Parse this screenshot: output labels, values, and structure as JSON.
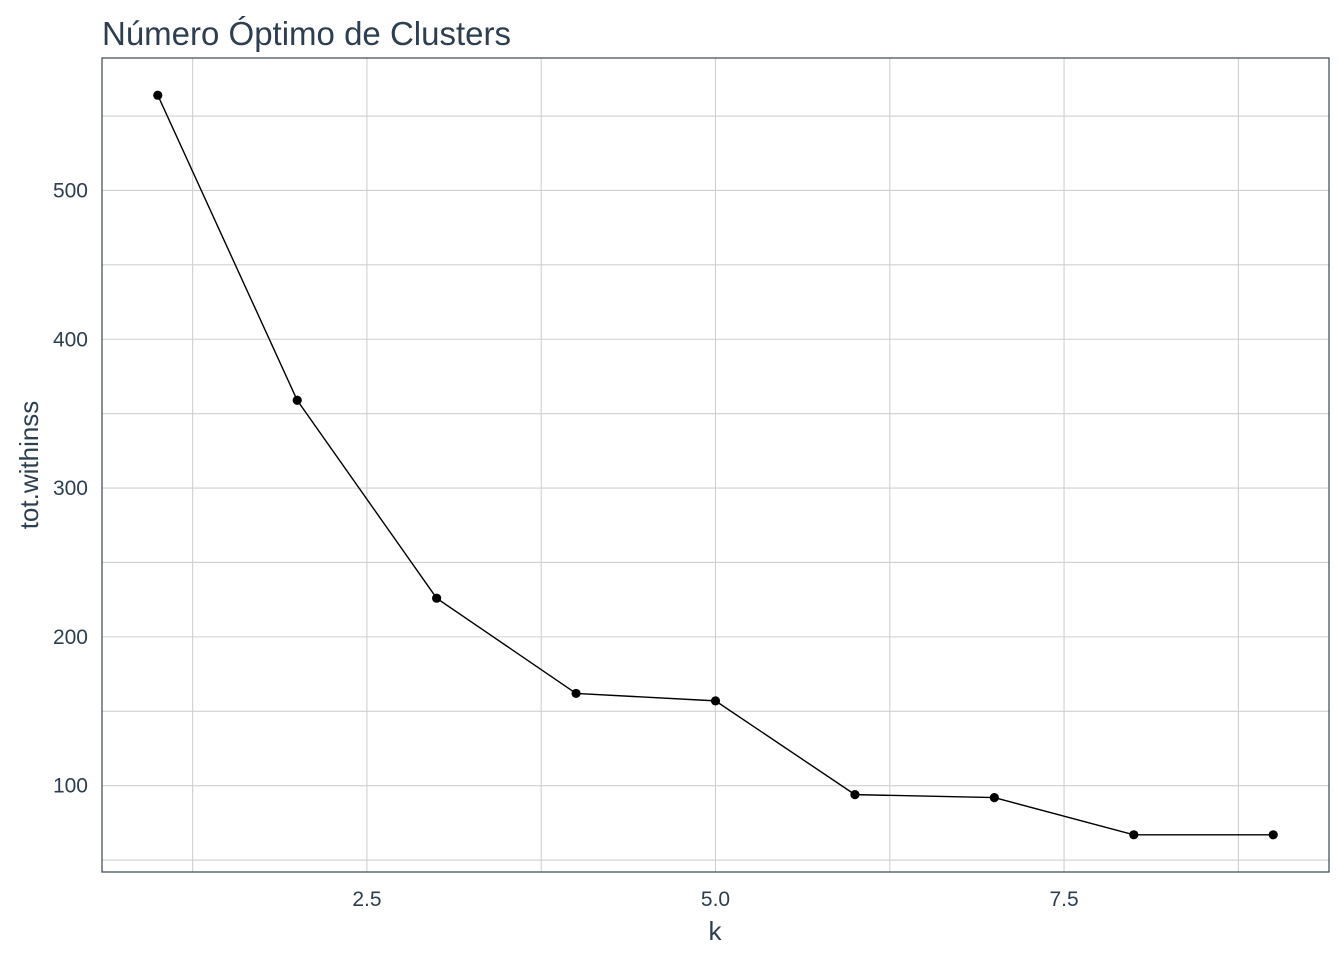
{
  "chart_data": {
    "type": "line",
    "title": "Número Óptimo de Clusters",
    "xlabel": "k",
    "ylabel": "tot.withinss",
    "x": [
      1,
      2,
      3,
      4,
      5,
      6,
      7,
      8,
      9
    ],
    "series": [
      {
        "values": [
          564,
          359,
          226,
          162,
          157,
          94,
          92,
          67,
          67
        ]
      }
    ],
    "xticks": [
      2.5,
      5.0,
      7.5
    ],
    "xtick_labels": [
      "2.5",
      "5.0",
      "7.5"
    ],
    "yticks": [
      100,
      200,
      300,
      400,
      500
    ],
    "ytick_labels": [
      "100",
      "200",
      "300",
      "400",
      "500"
    ],
    "xlim": [
      0.6,
      9.4
    ],
    "ylim": [
      42,
      589
    ],
    "grid": true,
    "legend": "none",
    "colors": {
      "line": "#000000",
      "point": "#000000",
      "grid": "#d0d0d0",
      "text": "#2c3e50"
    }
  }
}
